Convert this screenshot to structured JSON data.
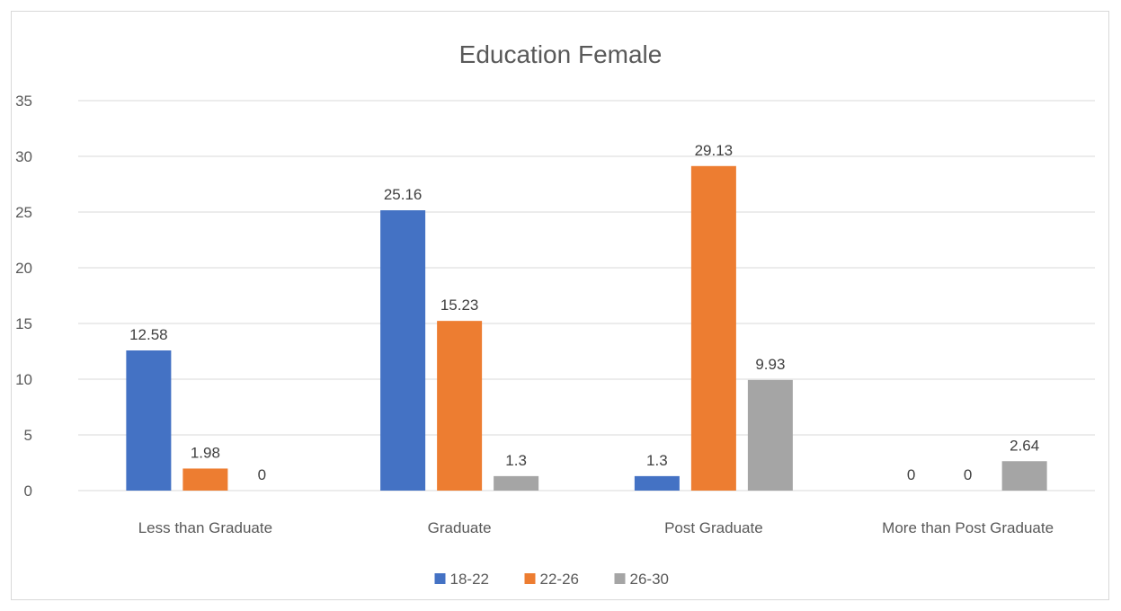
{
  "chart_data": {
    "type": "bar",
    "title": "Education Female",
    "categories": [
      "Less than Graduate",
      "Graduate",
      "Post Graduate",
      "More than Post Graduate"
    ],
    "series": [
      {
        "name": "18-22",
        "values": [
          12.58,
          25.16,
          1.3,
          0
        ],
        "color": "#4472c4"
      },
      {
        "name": "22-26",
        "values": [
          1.98,
          15.23,
          29.13,
          0
        ],
        "color": "#ed7d31"
      },
      {
        "name": "26-30",
        "values": [
          0,
          1.3,
          9.93,
          2.64
        ],
        "color": "#a5a5a5"
      }
    ],
    "ylim": [
      0,
      35
    ],
    "yticks": [
      0,
      5,
      10,
      15,
      20,
      25,
      30,
      35
    ],
    "xlabel": "",
    "ylabel": "",
    "grid": true,
    "legend": "bottom",
    "data_labels": true
  }
}
